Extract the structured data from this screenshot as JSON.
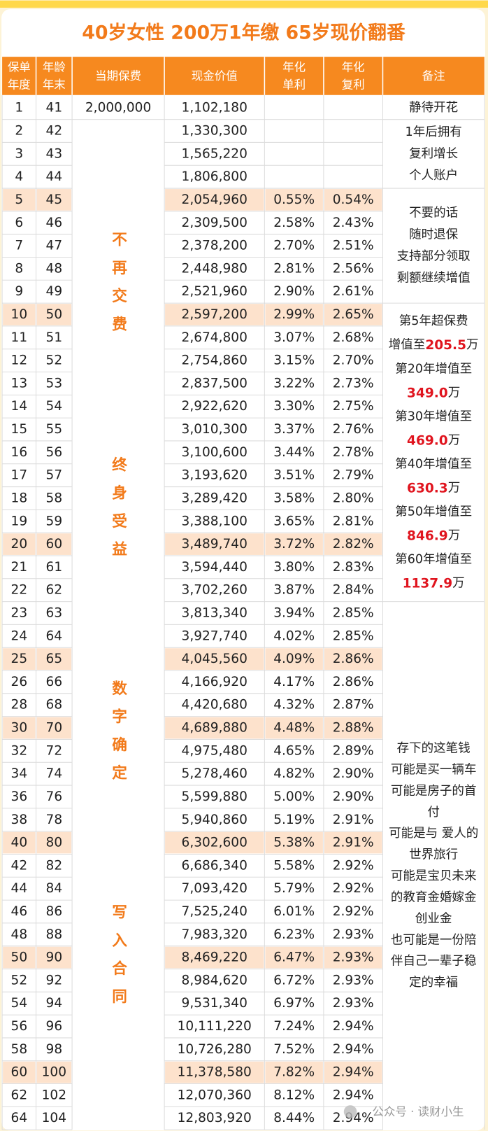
{
  "title": "40岁女性   200万1年缴   65岁现价翻番",
  "table": {
    "header": [
      [
        "保单",
        "年度"
      ],
      [
        "年龄",
        "年末"
      ],
      [
        "当期保费"
      ],
      [
        "现金价值"
      ],
      [
        "年化",
        "单利"
      ],
      [
        "年化",
        "复利"
      ],
      [
        "备注"
      ]
    ],
    "premium": "2,000,000",
    "premium_notes": [
      "不再交费",
      "终身受益",
      "数字确定",
      "写入合同"
    ],
    "highlight_color": "#fde2cc",
    "rows": [
      {
        "cells": [
          "1",
          "41",
          "1,102,180"
        ]
      },
      {
        "cells": [
          "2",
          "42",
          "1,330,300"
        ]
      },
      {
        "cells": [
          "3",
          "43",
          "1,565,220"
        ]
      },
      {
        "cells": [
          "4",
          "44",
          "1,806,800"
        ]
      },
      {
        "cells": [
          "5",
          "45",
          "2,054,960",
          "0.55%",
          "0.54%"
        ],
        "highlight": true
      },
      {
        "cells": [
          "6",
          "46",
          "2,309,500",
          "2.58%",
          "2.43%"
        ]
      },
      {
        "cells": [
          "7",
          "47",
          "2,378,200",
          "2.70%",
          "2.51%"
        ]
      },
      {
        "cells": [
          "8",
          "48",
          "2,448,980",
          "2.81%",
          "2.56%"
        ]
      },
      {
        "cells": [
          "9",
          "49",
          "2,521,960",
          "2.90%",
          "2.61%"
        ]
      },
      {
        "cells": [
          "10",
          "50",
          "2,597,200",
          "2.99%",
          "2.65%"
        ],
        "highlight": true
      },
      {
        "cells": [
          "11",
          "51",
          "2,674,800",
          "3.07%",
          "2.68%"
        ]
      },
      {
        "cells": [
          "12",
          "52",
          "2,754,860",
          "3.15%",
          "2.70%"
        ]
      },
      {
        "cells": [
          "13",
          "53",
          "2,837,500",
          "3.22%",
          "2.73%"
        ]
      },
      {
        "cells": [
          "14",
          "54",
          "2,922,620",
          "3.30%",
          "2.75%"
        ]
      },
      {
        "cells": [
          "15",
          "55",
          "3,010,300",
          "3.37%",
          "2.76%"
        ]
      },
      {
        "cells": [
          "16",
          "56",
          "3,100,600",
          "3.44%",
          "2.78%"
        ]
      },
      {
        "cells": [
          "17",
          "57",
          "3,193,620",
          "3.51%",
          "2.79%"
        ]
      },
      {
        "cells": [
          "18",
          "58",
          "3,289,420",
          "3.58%",
          "2.80%"
        ]
      },
      {
        "cells": [
          "19",
          "59",
          "3,388,100",
          "3.65%",
          "2.81%"
        ]
      },
      {
        "cells": [
          "20",
          "60",
          "3,489,740",
          "3.72%",
          "2.82%"
        ],
        "highlight": true
      },
      {
        "cells": [
          "21",
          "61",
          "3,594,440",
          "3.80%",
          "2.83%"
        ]
      },
      {
        "cells": [
          "22",
          "62",
          "3,702,260",
          "3.87%",
          "2.84%"
        ]
      },
      {
        "cells": [
          "23",
          "63",
          "3,813,340",
          "3.94%",
          "2.85%"
        ]
      },
      {
        "cells": [
          "24",
          "64",
          "3,927,740",
          "4.02%",
          "2.85%"
        ]
      },
      {
        "cells": [
          "25",
          "65",
          "4,045,560",
          "4.09%",
          "2.86%"
        ],
        "highlight": true
      },
      {
        "cells": [
          "26",
          "66",
          "4,166,920",
          "4.17%",
          "2.86%"
        ]
      },
      {
        "cells": [
          "28",
          "68",
          "4,420,680",
          "4.32%",
          "2.87%"
        ]
      },
      {
        "cells": [
          "30",
          "70",
          "4,689,880",
          "4.48%",
          "2.88%"
        ],
        "highlight": true
      },
      {
        "cells": [
          "32",
          "72",
          "4,975,480",
          "4.65%",
          "2.89%"
        ]
      },
      {
        "cells": [
          "34",
          "74",
          "5,278,460",
          "4.82%",
          "2.90%"
        ]
      },
      {
        "cells": [
          "36",
          "76",
          "5,599,880",
          "5.00%",
          "2.90%"
        ]
      },
      {
        "cells": [
          "38",
          "78",
          "5,940,860",
          "5.19%",
          "2.91%"
        ]
      },
      {
        "cells": [
          "40",
          "80",
          "6,302,600",
          "5.38%",
          "2.91%"
        ],
        "highlight": true
      },
      {
        "cells": [
          "42",
          "82",
          "6,686,340",
          "5.58%",
          "2.92%"
        ]
      },
      {
        "cells": [
          "44",
          "84",
          "7,093,420",
          "5.79%",
          "2.92%"
        ]
      },
      {
        "cells": [
          "46",
          "86",
          "7,525,240",
          "6.01%",
          "2.92%"
        ]
      },
      {
        "cells": [
          "48",
          "88",
          "7,983,320",
          "6.23%",
          "2.93%"
        ]
      },
      {
        "cells": [
          "50",
          "90",
          "8,469,220",
          "6.47%",
          "2.93%"
        ],
        "highlight": true
      },
      {
        "cells": [
          "52",
          "92",
          "8,984,620",
          "6.72%",
          "2.93%"
        ]
      },
      {
        "cells": [
          "54",
          "94",
          "9,531,340",
          "6.97%",
          "2.93%"
        ]
      },
      {
        "cells": [
          "56",
          "96",
          "10,111,220",
          "7.24%",
          "2.94%"
        ]
      },
      {
        "cells": [
          "58",
          "98",
          "10,726,280",
          "7.52%",
          "2.94%"
        ]
      },
      {
        "cells": [
          "60",
          "100",
          "11,378,580",
          "7.82%",
          "2.94%"
        ],
        "highlight": true
      },
      {
        "cells": [
          "62",
          "102",
          "12,070,360",
          "8.12%",
          "2.94%"
        ]
      },
      {
        "cells": [
          "64",
          "104",
          "12,803,920",
          "8.44%",
          "2.94%"
        ]
      }
    ],
    "remarks": [
      [
        [
          "静待开花"
        ]
      ],
      [
        [
          "1年后拥有"
        ],
        [
          "复利增长"
        ],
        [
          "个人账户"
        ]
      ],
      [
        [
          "不要的话"
        ],
        [
          "随时退保"
        ],
        [
          "支持部分领取"
        ],
        [
          "剩额继续增值"
        ]
      ],
      [
        [
          "第5年超保费"
        ],
        [
          "增值至",
          {
            "red": "205.5"
          },
          "万"
        ],
        [
          "第20年增值至"
        ],
        [
          {
            "red": "349.0"
          },
          "万"
        ],
        [
          "第30年增值至"
        ],
        [
          {
            "red": "469.0"
          },
          "万"
        ],
        [
          "第40年增值至"
        ],
        [
          {
            "red": "630.3"
          },
          "万"
        ],
        [
          "第50年增值至"
        ],
        [
          {
            "red": "846.9"
          },
          "万"
        ],
        [
          "第60年增值至"
        ],
        [
          {
            "red": "1137.9"
          },
          "万"
        ]
      ],
      [
        [
          "存下的这笔钱"
        ],
        [
          "可能是买一辆车"
        ],
        [
          "可能是房子的首"
        ],
        [
          "付"
        ],
        [
          "可能是与 爱人的"
        ],
        [
          "世界旅行"
        ],
        [
          "可能是宝贝未来"
        ],
        [
          "的教育金婚嫁金"
        ],
        [
          "创业金"
        ],
        [
          "也可能是一份陪"
        ],
        [
          "伴自己一辈子稳"
        ],
        [
          "定的幸福"
        ]
      ]
    ]
  },
  "watermark": "公众号 · 读财小生"
}
